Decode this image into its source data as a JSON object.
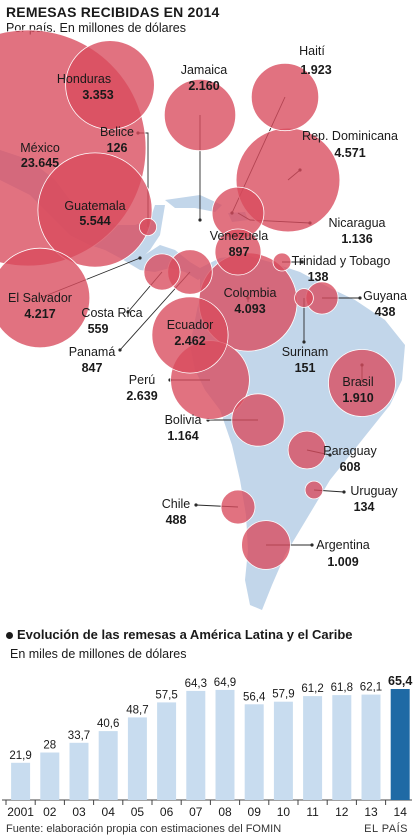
{
  "title": "REMESAS RECIBIDAS EN 2014",
  "subtitle": "Por país. En millones de dólares",
  "chart_data": [
    {
      "type": "bubble-map",
      "title": "REMESAS RECIBIDAS EN 2014",
      "subtitle": "Por país. En millones de dólares",
      "points": [
        {
          "country": "México",
          "value": 23645,
          "label": "23.645"
        },
        {
          "country": "Guatemala",
          "value": 5544,
          "label": "5.544"
        },
        {
          "country": "Rep. Dominicana",
          "value": 4571,
          "label": "4.571"
        },
        {
          "country": "El Salvador",
          "value": 4217,
          "label": "4.217"
        },
        {
          "country": "Colombia",
          "value": 4093,
          "label": "4.093"
        },
        {
          "country": "Honduras",
          "value": 3353,
          "label": "3.353"
        },
        {
          "country": "Perú",
          "value": 2639,
          "label": "2.639"
        },
        {
          "country": "Ecuador",
          "value": 2462,
          "label": "2.462"
        },
        {
          "country": "Jamaica",
          "value": 2160,
          "label": "2.160"
        },
        {
          "country": "Haití",
          "value": 1923,
          "label": "1.923"
        },
        {
          "country": "Brasil",
          "value": 1910,
          "label": "1.910"
        },
        {
          "country": "Bolivia",
          "value": 1164,
          "label": "1.164"
        },
        {
          "country": "Nicaragua",
          "value": 1136,
          "label": "1.136"
        },
        {
          "country": "Argentina",
          "value": 1009,
          "label": "1.009"
        },
        {
          "country": "Venezuela",
          "value": 897,
          "label": "897"
        },
        {
          "country": "Panamá",
          "value": 847,
          "label": "847"
        },
        {
          "country": "Paraguay",
          "value": 608,
          "label": "608"
        },
        {
          "country": "Costa Rica",
          "value": 559,
          "label": "559"
        },
        {
          "country": "Chile",
          "value": 488,
          "label": "488"
        },
        {
          "country": "Guyana",
          "value": 438,
          "label": "438"
        },
        {
          "country": "Surinam",
          "value": 151,
          "label": "151"
        },
        {
          "country": "Trinidad y Tobago",
          "value": 138,
          "label": "138"
        },
        {
          "country": "Uruguay",
          "value": 134,
          "label": "134"
        },
        {
          "country": "Belice",
          "value": 126,
          "label": "126"
        }
      ]
    },
    {
      "type": "bar",
      "title": "Evolución de las remesas a América Latina y el Caribe",
      "subtitle": "En miles de millones de dólares",
      "categories": [
        "2001",
        "02",
        "03",
        "04",
        "05",
        "06",
        "07",
        "08",
        "09",
        "10",
        "11",
        "12",
        "13",
        "14"
      ],
      "values": [
        21.9,
        28,
        33.7,
        40.6,
        48.7,
        57.5,
        64.3,
        64.9,
        56.4,
        57.9,
        61.2,
        61.8,
        62.1,
        65.4
      ],
      "value_labels": [
        "21,9",
        "28",
        "33,7",
        "40,6",
        "48,7",
        "57,5",
        "64,3",
        "64,9",
        "56,4",
        "57,9",
        "61,2",
        "61,8",
        "62,1",
        "65,4"
      ],
      "highlight": "14",
      "colors": {
        "bar": "#c8dcef",
        "highlight": "#1f6aa5",
        "bubble": "#d94a5c",
        "land": "#c2d6ea"
      }
    }
  ],
  "footer": {
    "source": "Fuente: elaboración propia con estimaciones del FOMIN",
    "brand": "EL PAÍS"
  }
}
